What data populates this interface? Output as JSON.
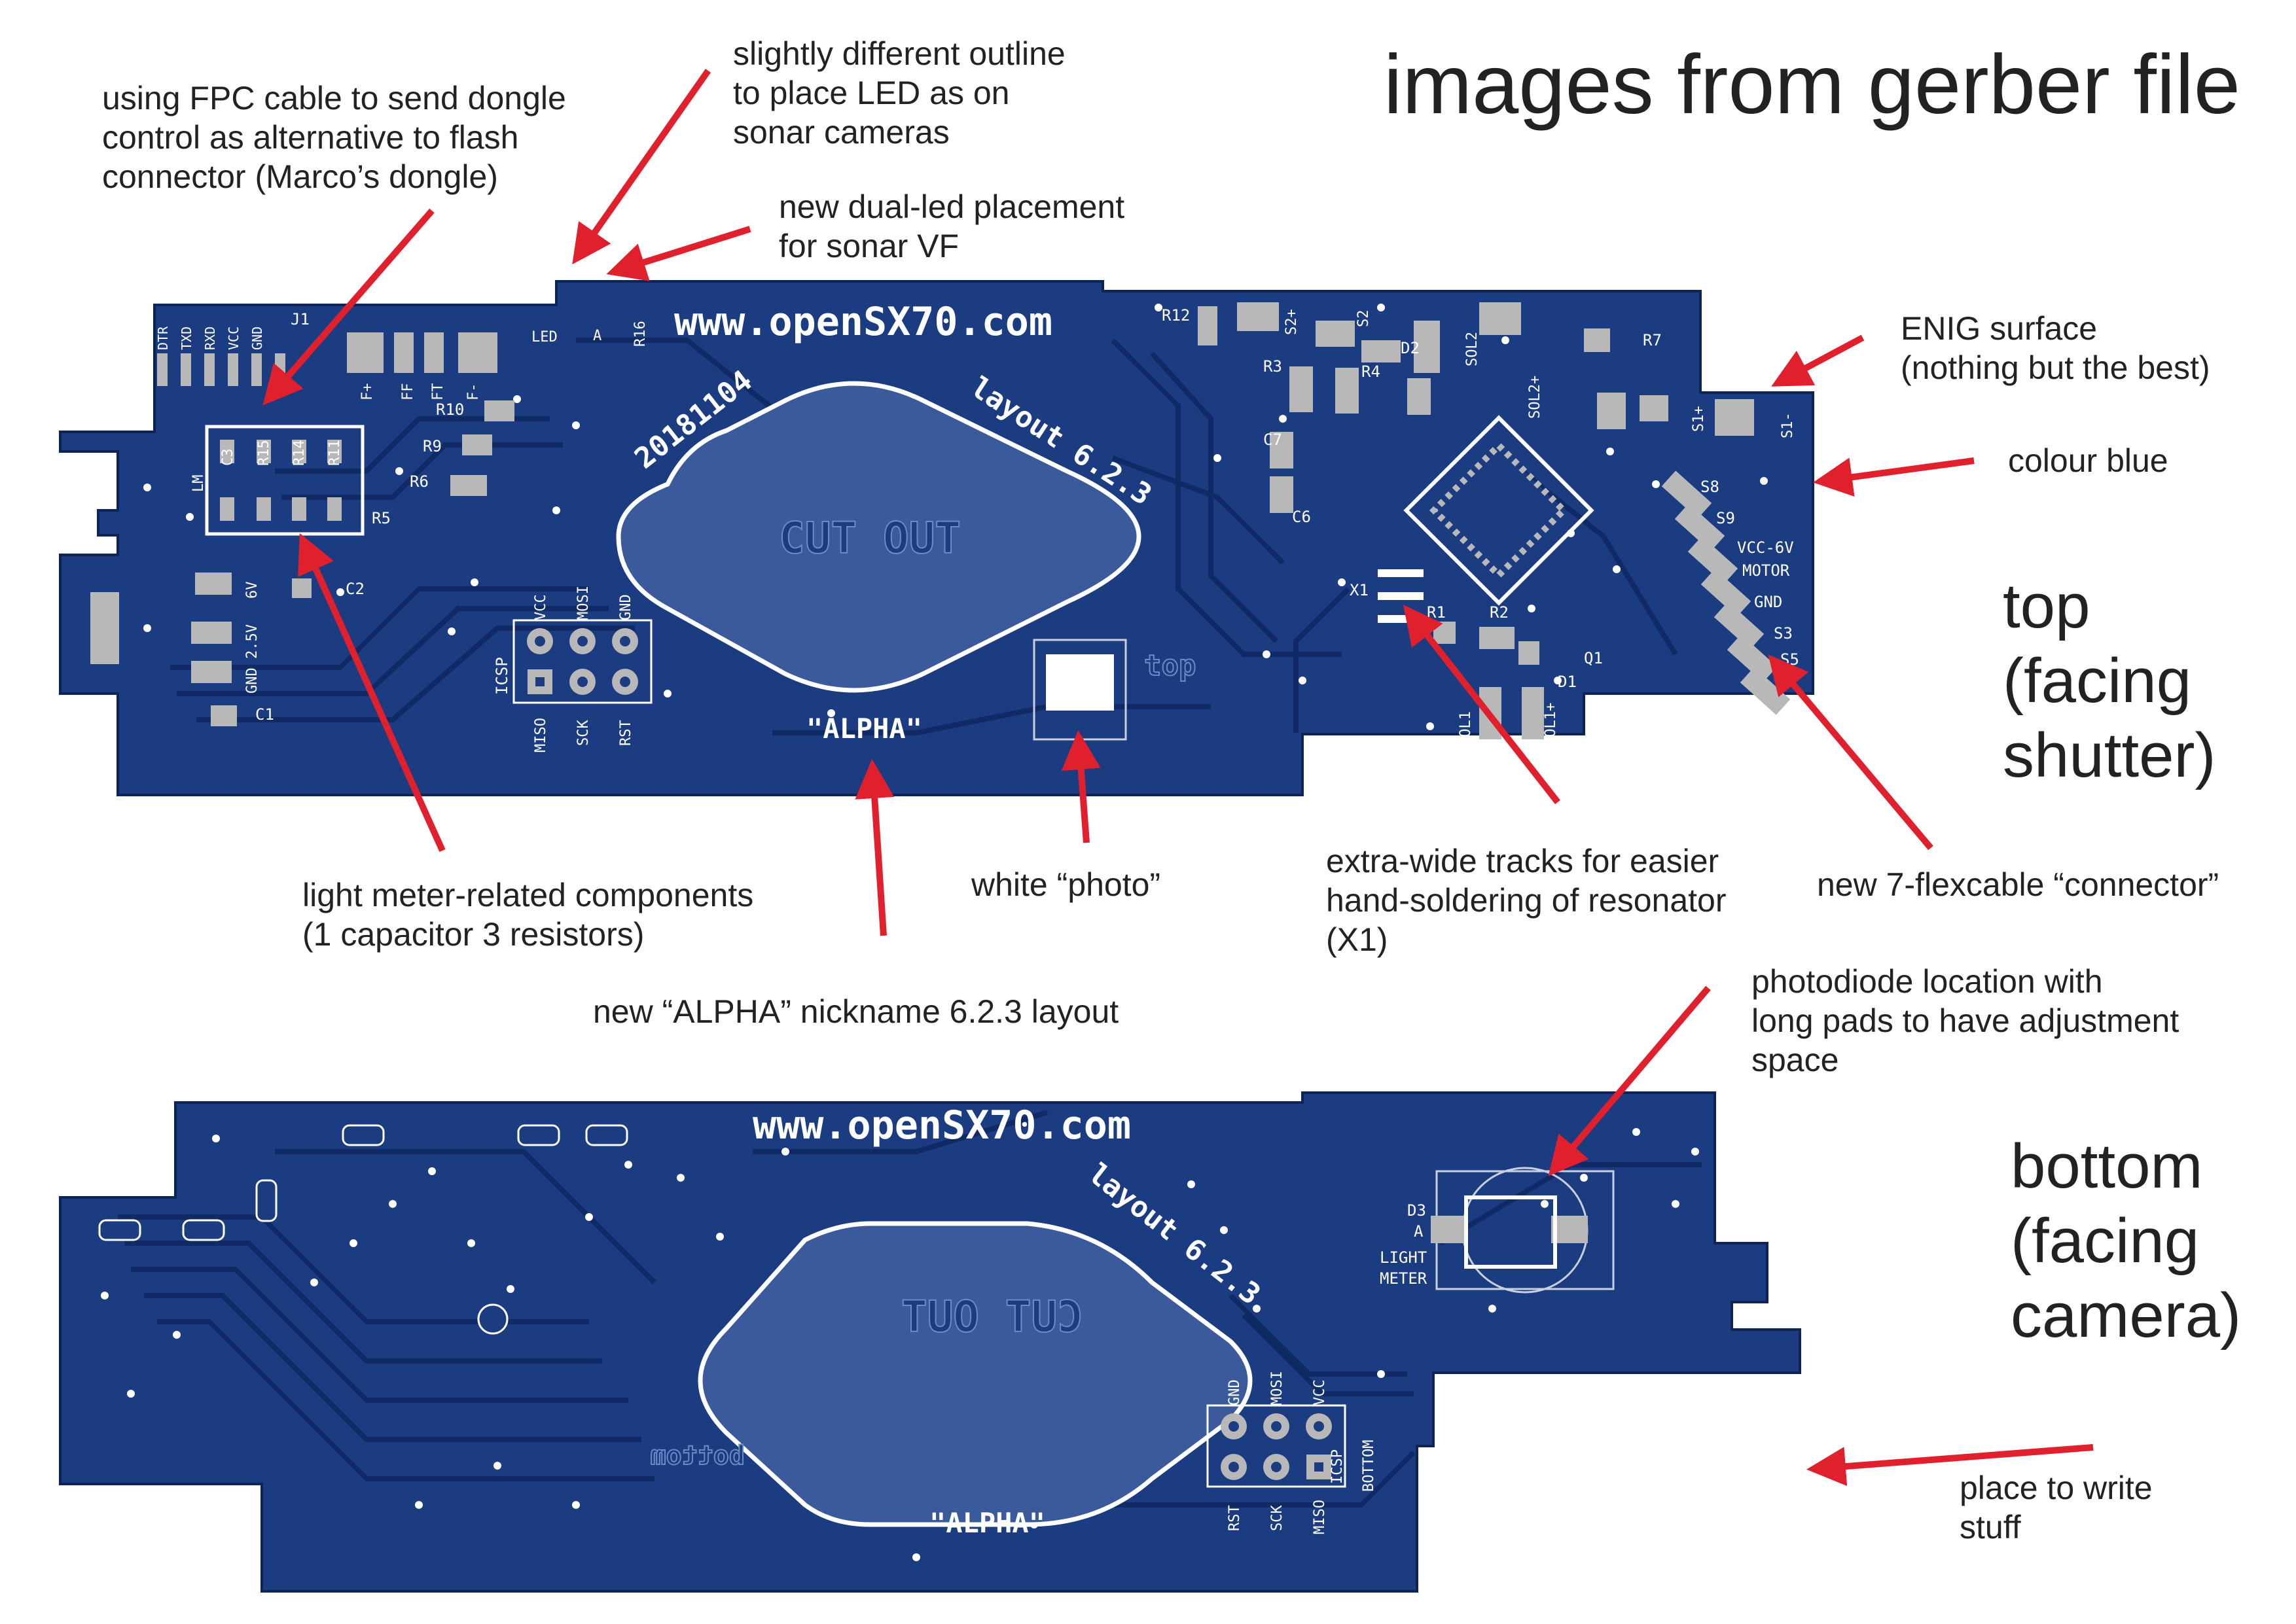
{
  "title": "images from gerber file",
  "side_labels": {
    "top": "top\n(facing\nshutter)",
    "bottom": "bottom\n(facing\ncamera)"
  },
  "annotations": {
    "fpc": "using FPC cable to send dongle\ncontrol as alternative to flash\nconnector (Marco’s dongle)",
    "outline": "slightly different outline\nto place LED as on\nsonar cameras",
    "dual_led": "new dual-led placement\nfor sonar VF",
    "enig": "ENIG surface\n(nothing but the best)",
    "colour": "colour blue",
    "light_meter": "light meter-related components\n(1 capacitor 3 resistors)",
    "photo": "white “photo”",
    "tracks": "extra-wide tracks for easier\nhand-soldering of resonator\n(X1)",
    "flexcable": "new 7-flexcable “connector”",
    "alpha": "new “ALPHA” nickname 6.2.3 layout",
    "photodiode": "photodiode location with\nlong pads to have adjustment\nspace",
    "write": "place to write\nstuff"
  },
  "top_board": {
    "url": "www.openSX70.com",
    "date": "20181104",
    "layout": "layout 6.2.3",
    "cutout": "CUT OUT",
    "nickname": "\"ALPHA\"",
    "side": "top",
    "icsp": "ICSP",
    "icsp_top": [
      "VCC",
      "MOSI",
      "GND"
    ],
    "icsp_bottom": [
      "MISO",
      "SCK",
      "RST"
    ],
    "serial_pins": [
      "DTR",
      "TXD",
      "RXD",
      "VCC",
      "GND"
    ],
    "labels": {
      "j1": "J1",
      "lm": "LM",
      "c3": "C3",
      "r15": "R15",
      "r14": "R14",
      "r11": "R11",
      "r9": "R9",
      "r6": "R6",
      "r5": "R5",
      "r10": "R10",
      "f_plus": "F+",
      "ff": "FF",
      "ft": "FT",
      "f_minus": "F-",
      "c2": "C2",
      "c1": "C1",
      "v6": "6V",
      "gnd25": "GND 2.5V",
      "gnd": "GND",
      "led": "LED",
      "a": "A",
      "r16": "R16",
      "r12": "R12",
      "s2plus": "S2+",
      "s2": "S2",
      "d2": "D2",
      "r3": "R3",
      "r4": "R4",
      "sol2": "SOL2",
      "sol2plus": "SOL2+",
      "r7": "R7",
      "c7": "C7",
      "c6": "C6",
      "x1": "X1",
      "r1": "R1",
      "r2": "R2",
      "q1": "Q1",
      "d1": "D1",
      "sol1": "SOL1",
      "sol1plus": "SOL1+",
      "s1plus": "S1+",
      "s1minus": "S1-",
      "s8": "S8",
      "s9": "S9",
      "vcc6v": "VCC-6V",
      "motor": "MOTOR",
      "s3": "S3",
      "s5": "S5"
    }
  },
  "bottom_board": {
    "url": "www.openSX70.com",
    "layout": "layout 6.2.3",
    "cutout": "CUT OUT",
    "nickname": "\"ALPHA\"",
    "side": "bottom",
    "icsp": "ICSP",
    "icsp_sub": "BOTTOM",
    "icsp_top": [
      "GND",
      "MOSI",
      "VCC"
    ],
    "icsp_bottom": [
      "RST",
      "SCK",
      "MISO"
    ],
    "d3": "D3",
    "a": "A",
    "light_meter": "LIGHT\nMETER"
  },
  "colors": {
    "board": "#1c3c82",
    "board_dark": "#112a66",
    "silk": "#ffffff",
    "arrow": "#e0202d",
    "copper": "#b8b8b8"
  }
}
